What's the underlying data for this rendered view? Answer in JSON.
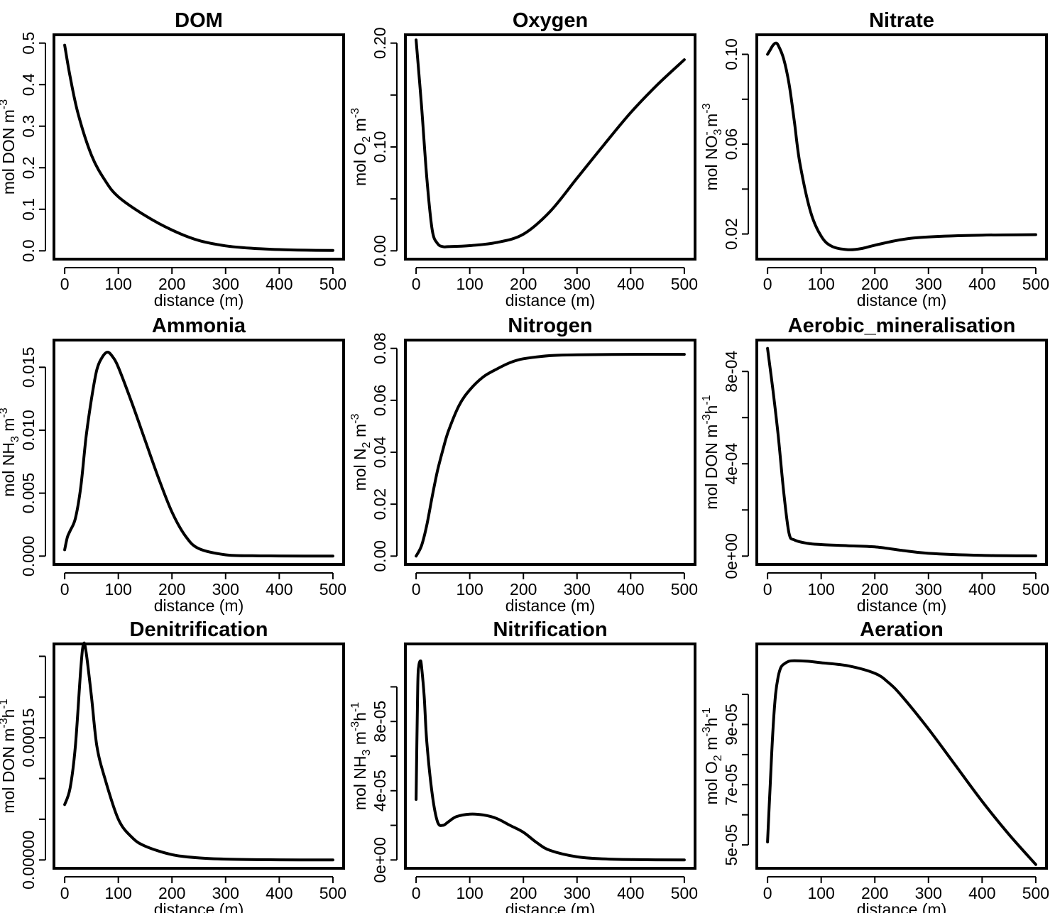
{
  "chart_data": [
    {
      "type": "line",
      "title": "DOM",
      "xlabel": "distance (m)",
      "ylabel": {
        "pre": "mol DON m",
        "sup": "-3"
      },
      "xlim": [
        0,
        500
      ],
      "ylim": [
        0,
        0.5
      ],
      "xticks": [
        0,
        100,
        200,
        300,
        400,
        500
      ],
      "xtick_labels": [
        "0",
        "100",
        "200",
        "300",
        "400",
        "500"
      ],
      "yticks": [
        0,
        0.1,
        0.2,
        0.3,
        0.4,
        0.5
      ],
      "ytick_labels": [
        "0.0",
        "0.1",
        "0.2",
        "0.3",
        "0.4",
        "0.5"
      ],
      "series": [
        {
          "x": [
            0,
            10,
            25,
            50,
            75,
            100,
            150,
            200,
            250,
            300,
            350,
            400,
            450,
            500
          ],
          "y": [
            0.495,
            0.42,
            0.33,
            0.23,
            0.17,
            0.13,
            0.085,
            0.05,
            0.025,
            0.012,
            0.006,
            0.003,
            0.0015,
            0.001
          ]
        }
      ]
    },
    {
      "type": "line",
      "title": "Oxygen",
      "xlabel": "distance (m)",
      "ylabel": {
        "pre": "mol O",
        "sub": "2",
        "post": " m",
        "sup": "-3"
      },
      "xlim": [
        0,
        500
      ],
      "ylim": [
        0,
        0.2
      ],
      "xticks": [
        0,
        100,
        200,
        300,
        400,
        500
      ],
      "xtick_labels": [
        "0",
        "100",
        "200",
        "300",
        "400",
        "500"
      ],
      "yticks": [
        0,
        0.05,
        0.1,
        0.15,
        0.2
      ],
      "ytick_labels": [
        "0.00",
        "",
        "0.10",
        "",
        "0.20"
      ],
      "series": [
        {
          "x": [
            0,
            10,
            20,
            30,
            40,
            50,
            60,
            100,
            150,
            200,
            250,
            300,
            350,
            400,
            450,
            500
          ],
          "y": [
            0.203,
            0.14,
            0.07,
            0.02,
            0.007,
            0.004,
            0.004,
            0.005,
            0.008,
            0.016,
            0.038,
            0.07,
            0.102,
            0.133,
            0.16,
            0.184
          ]
        }
      ]
    },
    {
      "type": "line",
      "title": "Nitrate",
      "xlabel": "distance (m)",
      "ylabel": {
        "pre": "mol NO",
        "sub": "3",
        "supmid": "-",
        "post": " m",
        "sup": "-3"
      },
      "xlim": [
        0,
        500
      ],
      "ylim": [
        0.0125,
        0.105
      ],
      "xticks": [
        0,
        100,
        200,
        300,
        400,
        500
      ],
      "xtick_labels": [
        "0",
        "100",
        "200",
        "300",
        "400",
        "500"
      ],
      "yticks": [
        0.02,
        0.04,
        0.06,
        0.08,
        0.1
      ],
      "ytick_labels": [
        "0.02",
        "",
        "0.06",
        "",
        "0.10"
      ],
      "series": [
        {
          "x": [
            0,
            5,
            10,
            15,
            20,
            30,
            40,
            50,
            60,
            80,
            100,
            120,
            150,
            175,
            200,
            250,
            300,
            400,
            500
          ],
          "y": [
            0.1,
            0.102,
            0.104,
            0.105,
            0.104,
            0.098,
            0.087,
            0.07,
            0.052,
            0.03,
            0.019,
            0.0145,
            0.013,
            0.0135,
            0.015,
            0.0175,
            0.0187,
            0.0195,
            0.0197
          ]
        }
      ]
    },
    {
      "type": "line",
      "title": "Ammonia",
      "xlabel": "distance (m)",
      "ylabel": {
        "pre": "mol NH",
        "sub": "3",
        "post": " m",
        "sup": "-3"
      },
      "xlim": [
        0,
        500
      ],
      "ylim": [
        0,
        0.0165
      ],
      "xticks": [
        0,
        100,
        200,
        300,
        400,
        500
      ],
      "xtick_labels": [
        "0",
        "100",
        "200",
        "300",
        "400",
        "500"
      ],
      "yticks": [
        0,
        0.005,
        0.01,
        0.015
      ],
      "ytick_labels": [
        "0.000",
        "0.005",
        "0.010",
        "0.015"
      ],
      "series": [
        {
          "x": [
            0,
            5,
            10,
            20,
            30,
            40,
            50,
            60,
            70,
            80,
            90,
            100,
            125,
            150,
            175,
            200,
            225,
            250,
            300,
            350,
            400,
            500
          ],
          "y": [
            0.0005,
            0.0015,
            0.002,
            0.003,
            0.0055,
            0.0095,
            0.0125,
            0.0148,
            0.0158,
            0.0162,
            0.0158,
            0.015,
            0.0122,
            0.0092,
            0.0062,
            0.0035,
            0.0016,
            0.0006,
            0.0001,
            3e-05,
            1e-05,
            0.0
          ]
        }
      ]
    },
    {
      "type": "line",
      "title": "Nitrogen",
      "xlabel": "distance (m)",
      "ylabel": {
        "pre": "mol N",
        "sub": "2",
        "post": " m",
        "sup": "-3"
      },
      "xlim": [
        0,
        500
      ],
      "ylim": [
        0,
        0.08
      ],
      "xticks": [
        0,
        100,
        200,
        300,
        400,
        500
      ],
      "xtick_labels": [
        "0",
        "100",
        "200",
        "300",
        "400",
        "500"
      ],
      "yticks": [
        0,
        0.02,
        0.04,
        0.06,
        0.08
      ],
      "ytick_labels": [
        "0.00",
        "0.02",
        "0.04",
        "0.06",
        "0.08"
      ],
      "series": [
        {
          "x": [
            0,
            10,
            20,
            30,
            40,
            50,
            60,
            80,
            100,
            125,
            150,
            175,
            200,
            250,
            300,
            400,
            500
          ],
          "y": [
            0,
            0.004,
            0.012,
            0.023,
            0.033,
            0.041,
            0.048,
            0.058,
            0.064,
            0.069,
            0.072,
            0.0745,
            0.076,
            0.0772,
            0.0775,
            0.0777,
            0.0777
          ]
        }
      ]
    },
    {
      "type": "line",
      "title": "Aerobic_mineralisation",
      "xlabel": "distance (m)",
      "ylabel": {
        "pre": "mol DON m",
        "sup": "-3",
        "post2": "h",
        "sup2": "-1"
      },
      "xlim": [
        0,
        500
      ],
      "ylim": [
        0,
        0.0009
      ],
      "xticks": [
        0,
        100,
        200,
        300,
        400,
        500
      ],
      "xtick_labels": [
        "0",
        "100",
        "200",
        "300",
        "400",
        "500"
      ],
      "yticks": [
        0,
        0.0002,
        0.0004,
        0.0006,
        0.0008
      ],
      "ytick_labels": [
        "0e+00",
        "",
        "4e-04",
        "",
        "8e-04"
      ],
      "series": [
        {
          "x": [
            0,
            10,
            20,
            30,
            40,
            50,
            75,
            100,
            150,
            200,
            250,
            300,
            400,
            500
          ],
          "y": [
            0.0009,
            0.00072,
            0.00052,
            0.00028,
            0.0001,
            7e-05,
            5.5e-05,
            5e-05,
            4.5e-05,
            4e-05,
            2.5e-05,
            1.2e-05,
            3e-06,
            1e-06
          ]
        }
      ]
    },
    {
      "type": "line",
      "title": "Denitrification",
      "xlabel": "distance (m)",
      "ylabel": {
        "pre": "mol DON m",
        "sup": "-3",
        "post2": "h",
        "sup2": "-1"
      },
      "xlim": [
        0,
        500
      ],
      "ylim": [
        0,
        0.000255
      ],
      "xticks": [
        0,
        100,
        200,
        300,
        400,
        500
      ],
      "xtick_labels": [
        "0",
        "100",
        "200",
        "300",
        "400",
        "500"
      ],
      "yticks": [
        0,
        5e-05,
        0.0001,
        0.00015,
        0.0002,
        0.00025
      ],
      "ytick_labels": [
        "0.00000",
        "",
        "",
        "0.00015",
        "",
        ""
      ],
      "series": [
        {
          "x": [
            0,
            10,
            20,
            30,
            35,
            40,
            50,
            60,
            75,
            100,
            125,
            150,
            200,
            250,
            300,
            400,
            500
          ],
          "y": [
            6.8e-05,
            8.8e-05,
            0.00014,
            0.000235,
            0.000265,
            0.000255,
            0.0002,
            0.00014,
            0.0001,
            5e-05,
            2.8e-05,
            1.7e-05,
            6.5e-06,
            2.5e-06,
            1e-06,
            2e-07,
            0.0
          ]
        }
      ]
    },
    {
      "type": "line",
      "title": "Nitrification",
      "xlabel": "distance (m)",
      "ylabel": {
        "pre": "mol NH",
        "sub": "3",
        "post": " m",
        "sup": "-3",
        "post2": "h",
        "sup2": "-1"
      },
      "xlim": [
        0,
        500
      ],
      "ylim": [
        0,
        0.00012
      ],
      "xticks": [
        0,
        100,
        200,
        300,
        400,
        500
      ],
      "xtick_labels": [
        "0",
        "100",
        "200",
        "300",
        "400",
        "500"
      ],
      "yticks": [
        0,
        2e-05,
        4e-05,
        6e-05,
        8e-05,
        0.0001
      ],
      "ytick_labels": [
        "0e+00",
        "",
        "4e-05",
        "",
        "8e-05",
        ""
      ],
      "series": [
        {
          "x": [
            0,
            3,
            5,
            8,
            10,
            15,
            20,
            30,
            40,
            50,
            60,
            75,
            100,
            125,
            150,
            175,
            200,
            225,
            250,
            300,
            350,
            400,
            500
          ],
          "y": [
            3.5e-05,
            0.0001,
            0.000112,
            0.000115,
            0.000112,
            9.5e-05,
            6.8e-05,
            3.8e-05,
            2.2e-05,
            2e-05,
            2.2e-05,
            2.5e-05,
            2.65e-05,
            2.6e-05,
            2.4e-05,
            2e-05,
            1.6e-05,
            1e-05,
            5.5e-06,
            1.8e-06,
            6e-07,
            2e-07,
            0.0
          ]
        }
      ]
    },
    {
      "type": "line",
      "title": "Aeration",
      "xlabel": "distance (m)",
      "ylabel": {
        "pre": "mol O",
        "sub": "2",
        "post": " m",
        "sup": "-3",
        "post2": "h",
        "sup2": "-1"
      },
      "xlim": [
        0,
        500
      ],
      "ylim": [
        4.5e-05,
        0.000114
      ],
      "xticks": [
        0,
        100,
        200,
        300,
        400,
        500
      ],
      "xtick_labels": [
        "0",
        "100",
        "200",
        "300",
        "400",
        "500"
      ],
      "yticks": [
        5e-05,
        6e-05,
        7e-05,
        8e-05,
        9e-05,
        0.0001
      ],
      "ytick_labels": [
        "5e-05",
        "",
        "7e-05",
        "",
        "9e-05",
        ""
      ],
      "series": [
        {
          "x": [
            0,
            5,
            10,
            15,
            20,
            25,
            30,
            40,
            50,
            75,
            100,
            150,
            200,
            225,
            250,
            300,
            350,
            400,
            450,
            500
          ],
          "y": [
            5.1e-05,
            7e-05,
            8.8e-05,
            0.0001,
            0.000106,
            0.000109,
            0.00011,
            0.000111,
            0.0001112,
            0.000111,
            0.0001105,
            0.0001095,
            0.000107,
            0.000104,
            9.95e-05,
            8.85e-05,
            7.65e-05,
            6.45e-05,
            5.35e-05,
            4.35e-05
          ]
        }
      ]
    }
  ]
}
